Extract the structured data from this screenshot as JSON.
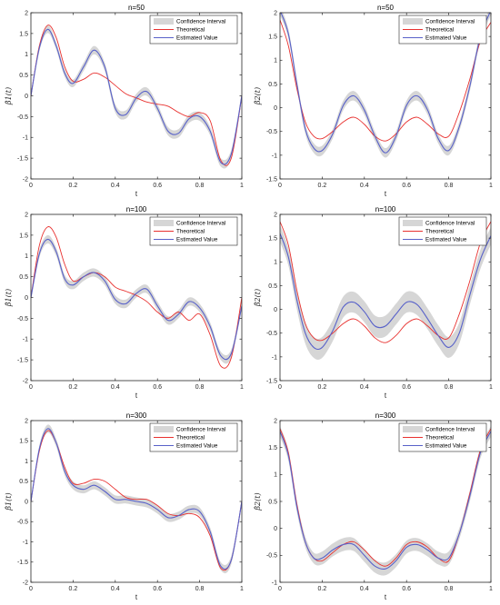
{
  "colors": {
    "band": "#d6d6d6",
    "theoretical": "#e8312f",
    "estimated": "#5861c9"
  },
  "chart_data": [
    {
      "type": "line",
      "title": "n=50",
      "xlabel": "t",
      "ylabel": "β̂1(t)",
      "xlim": [
        0,
        1
      ],
      "ylim": [
        -2,
        2
      ],
      "xticks": [
        "0",
        "0.2",
        "0.4",
        "0.6",
        "0.8",
        "1"
      ],
      "yticks": [
        "-2",
        "-1.5",
        "-1",
        "-0.5",
        "0",
        "0.5",
        "1",
        "1.5",
        "2"
      ],
      "legend": [
        "Confidence Interval",
        "Theoretical",
        "Estimated Value"
      ],
      "legend_position": "top-right",
      "x": [
        0,
        0.04,
        0.08,
        0.12,
        0.16,
        0.2,
        0.25,
        0.3,
        0.35,
        0.4,
        0.45,
        0.5,
        0.55,
        0.6,
        0.65,
        0.7,
        0.75,
        0.8,
        0.85,
        0.9,
        0.95,
        1
      ],
      "series": [
        {
          "name": "Theoretical",
          "values": [
            0,
            1.2,
            1.7,
            1.4,
            0.7,
            0.35,
            0.4,
            0.55,
            0.45,
            0.25,
            0.05,
            -0.05,
            -0.15,
            -0.2,
            -0.25,
            -0.4,
            -0.5,
            -0.4,
            -0.6,
            -1.55,
            -1.5,
            0
          ]
        },
        {
          "name": "Estimated Value",
          "values": [
            0,
            1.15,
            1.6,
            1.2,
            0.55,
            0.3,
            0.7,
            1.1,
            0.7,
            -0.3,
            -0.45,
            -0.05,
            0.1,
            -0.3,
            -0.85,
            -0.9,
            -0.55,
            -0.5,
            -0.85,
            -1.6,
            -1.4,
            0
          ]
        },
        {
          "name": "Confidence Interval",
          "band": [
            0.07,
            0.08,
            0.09,
            0.09,
            0.09,
            0.09,
            0.1,
            0.1,
            0.1,
            0.1,
            0.1,
            0.1,
            0.1,
            0.1,
            0.1,
            0.1,
            0.1,
            0.1,
            0.1,
            0.1,
            0.1,
            0.08
          ]
        }
      ]
    },
    {
      "type": "line",
      "title": "n=50",
      "xlabel": "t",
      "ylabel": "β̂2(t)",
      "xlim": [
        0,
        1
      ],
      "ylim": [
        -1.5,
        2
      ],
      "xticks": [
        "0",
        "0.2",
        "0.4",
        "0.6",
        "0.8",
        "1"
      ],
      "yticks": [
        "-1.5",
        "-1",
        "-0.5",
        "0",
        "0.5",
        "1",
        "1.5",
        "2"
      ],
      "legend": [
        "Confidence Interval",
        "Theoretical",
        "Estimated Value"
      ],
      "legend_position": "top-right",
      "x": [
        0,
        0.04,
        0.08,
        0.12,
        0.16,
        0.2,
        0.25,
        0.3,
        0.35,
        0.4,
        0.45,
        0.5,
        0.55,
        0.6,
        0.65,
        0.7,
        0.75,
        0.8,
        0.85,
        0.9,
        0.95,
        1
      ],
      "series": [
        {
          "name": "Theoretical",
          "values": [
            1.85,
            1.3,
            0.4,
            -0.3,
            -0.6,
            -0.65,
            -0.5,
            -0.3,
            -0.2,
            -0.35,
            -0.6,
            -0.7,
            -0.55,
            -0.3,
            -0.2,
            -0.35,
            -0.55,
            -0.6,
            -0.1,
            0.6,
            1.4,
            1.8
          ]
        },
        {
          "name": "Estimated Value",
          "values": [
            2.05,
            1.55,
            0.5,
            -0.45,
            -0.85,
            -0.9,
            -0.55,
            0.05,
            0.25,
            -0.05,
            -0.6,
            -0.95,
            -0.6,
            0.05,
            0.25,
            -0.05,
            -0.65,
            -0.9,
            -0.4,
            0.45,
            1.5,
            2.05
          ]
        },
        {
          "name": "Confidence Interval",
          "band": [
            0.1,
            0.1,
            0.1,
            0.1,
            0.1,
            0.1,
            0.1,
            0.1,
            0.1,
            0.1,
            0.1,
            0.1,
            0.1,
            0.1,
            0.1,
            0.1,
            0.1,
            0.1,
            0.1,
            0.1,
            0.1,
            0.1
          ]
        }
      ]
    },
    {
      "type": "line",
      "title": "n=100",
      "xlabel": "t",
      "ylabel": "β̂1(t)",
      "xlim": [
        0,
        1
      ],
      "ylim": [
        -2,
        2
      ],
      "xticks": [
        "0",
        "0.2",
        "0.4",
        "0.6",
        "0.8",
        "1"
      ],
      "yticks": [
        "-2",
        "-1.5",
        "-1",
        "-0.5",
        "0",
        "0.5",
        "1",
        "1.5",
        "2"
      ],
      "legend": [
        "Confidence Interval",
        "Theoretical",
        "Estimated Value"
      ],
      "legend_position": "top-right",
      "x": [
        0,
        0.04,
        0.08,
        0.12,
        0.16,
        0.2,
        0.25,
        0.3,
        0.35,
        0.4,
        0.45,
        0.5,
        0.55,
        0.6,
        0.65,
        0.7,
        0.75,
        0.8,
        0.85,
        0.9,
        0.95,
        1
      ],
      "series": [
        {
          "name": "Theoretical",
          "values": [
            0,
            1.25,
            1.7,
            1.45,
            0.8,
            0.4,
            0.5,
            0.6,
            0.5,
            0.25,
            0.15,
            0.05,
            -0.1,
            -0.35,
            -0.5,
            -0.35,
            -0.55,
            -0.4,
            -0.9,
            -1.65,
            -1.45,
            0
          ]
        },
        {
          "name": "Estimated Value",
          "values": [
            0,
            1.05,
            1.4,
            1.1,
            0.45,
            0.3,
            0.5,
            0.6,
            0.4,
            -0.05,
            -0.15,
            0.1,
            0.2,
            -0.2,
            -0.55,
            -0.4,
            -0.1,
            -0.25,
            -0.7,
            -1.4,
            -1.35,
            -0.2
          ]
        },
        {
          "name": "Confidence Interval",
          "band": [
            0.08,
            0.09,
            0.1,
            0.1,
            0.1,
            0.1,
            0.1,
            0.1,
            0.1,
            0.1,
            0.1,
            0.1,
            0.1,
            0.1,
            0.1,
            0.1,
            0.1,
            0.1,
            0.1,
            0.1,
            0.1,
            0.08
          ]
        }
      ]
    },
    {
      "type": "line",
      "title": "n=100",
      "xlabel": "t",
      "ylabel": "β̂2(t)",
      "xlim": [
        0,
        1
      ],
      "ylim": [
        -1.5,
        2
      ],
      "xticks": [
        "0",
        "0.2",
        "0.4",
        "0.6",
        "0.8",
        "1"
      ],
      "yticks": [
        "-1.5",
        "-1",
        "-0.5",
        "0",
        "0.5",
        "1",
        "1.5",
        "2"
      ],
      "legend": [
        "Confidence Interval",
        "Theoretical",
        "Estimated Value"
      ],
      "legend_position": "top-right",
      "x": [
        0,
        0.04,
        0.08,
        0.12,
        0.16,
        0.2,
        0.25,
        0.3,
        0.35,
        0.4,
        0.45,
        0.5,
        0.55,
        0.6,
        0.65,
        0.7,
        0.75,
        0.8,
        0.85,
        0.9,
        0.95,
        1
      ],
      "series": [
        {
          "name": "Theoretical",
          "values": [
            1.85,
            1.35,
            0.4,
            -0.3,
            -0.6,
            -0.65,
            -0.5,
            -0.3,
            -0.2,
            -0.35,
            -0.6,
            -0.7,
            -0.55,
            -0.3,
            -0.2,
            -0.35,
            -0.55,
            -0.6,
            -0.1,
            0.6,
            1.4,
            1.85
          ]
        },
        {
          "name": "Estimated Value",
          "values": [
            1.6,
            1.1,
            0.2,
            -0.5,
            -0.8,
            -0.8,
            -0.45,
            0.05,
            0.15,
            -0.05,
            -0.35,
            -0.35,
            -0.1,
            0.15,
            0.1,
            -0.2,
            -0.55,
            -0.8,
            -0.5,
            0.3,
            1.05,
            1.55
          ]
        },
        {
          "name": "Confidence Interval",
          "band": [
            0.18,
            0.18,
            0.2,
            0.22,
            0.22,
            0.22,
            0.22,
            0.22,
            0.22,
            0.22,
            0.22,
            0.22,
            0.22,
            0.22,
            0.22,
            0.22,
            0.22,
            0.22,
            0.22,
            0.2,
            0.2,
            0.18
          ]
        }
      ]
    },
    {
      "type": "line",
      "title": "n=300",
      "xlabel": "t",
      "ylabel": "β̂1(t)",
      "xlim": [
        0,
        1
      ],
      "ylim": [
        -2,
        2
      ],
      "xticks": [
        "0",
        "0.2",
        "0.4",
        "0.6",
        "0.8",
        "1"
      ],
      "yticks": [
        "-2",
        "-1.5",
        "-1",
        "-0.5",
        "0",
        "0.5",
        "1",
        "1.5",
        "2"
      ],
      "legend": [
        "Confidence Interval",
        "Theoretical",
        "Estimated Value"
      ],
      "legend_position": "top-right",
      "x": [
        0,
        0.04,
        0.08,
        0.12,
        0.16,
        0.2,
        0.25,
        0.3,
        0.35,
        0.4,
        0.45,
        0.5,
        0.55,
        0.6,
        0.65,
        0.7,
        0.75,
        0.8,
        0.85,
        0.9,
        0.95,
        1
      ],
      "series": [
        {
          "name": "Theoretical",
          "values": [
            0,
            1.25,
            1.75,
            1.45,
            0.85,
            0.45,
            0.45,
            0.55,
            0.5,
            0.3,
            0.1,
            0.05,
            0.05,
            -0.1,
            -0.3,
            -0.35,
            -0.3,
            -0.4,
            -0.85,
            -1.65,
            -1.45,
            0
          ]
        },
        {
          "name": "Estimated Value",
          "values": [
            0,
            1.3,
            1.8,
            1.45,
            0.75,
            0.4,
            0.3,
            0.4,
            0.25,
            0.05,
            0.05,
            0,
            -0.05,
            -0.2,
            -0.4,
            -0.35,
            -0.2,
            -0.25,
            -0.75,
            -1.6,
            -1.45,
            0
          ]
        },
        {
          "name": "Confidence Interval",
          "band": [
            0.05,
            0.08,
            0.1,
            0.1,
            0.1,
            0.1,
            0.1,
            0.1,
            0.1,
            0.1,
            0.1,
            0.1,
            0.1,
            0.1,
            0.1,
            0.1,
            0.1,
            0.1,
            0.1,
            0.1,
            0.1,
            0.05
          ]
        }
      ]
    },
    {
      "type": "line",
      "title": "n=300",
      "xlabel": "t",
      "ylabel": "β̂2(t)",
      "xlim": [
        0,
        1
      ],
      "ylim": [
        -1,
        2
      ],
      "xticks": [
        "0",
        "0.2",
        "0.4",
        "0.6",
        "0.8",
        "1"
      ],
      "yticks": [
        "-1",
        "-0.5",
        "0",
        "0.5",
        "1",
        "1.5",
        "2"
      ],
      "legend": [
        "Confidence Interval",
        "Theoretical",
        "Estimated Value"
      ],
      "legend_position": "top-right",
      "x": [
        0,
        0.04,
        0.08,
        0.12,
        0.16,
        0.2,
        0.25,
        0.3,
        0.35,
        0.4,
        0.45,
        0.5,
        0.55,
        0.6,
        0.65,
        0.7,
        0.75,
        0.8,
        0.85,
        0.9,
        0.95,
        1
      ],
      "series": [
        {
          "name": "Theoretical",
          "values": [
            1.85,
            1.4,
            0.45,
            -0.25,
            -0.55,
            -0.6,
            -0.45,
            -0.3,
            -0.25,
            -0.4,
            -0.6,
            -0.7,
            -0.55,
            -0.3,
            -0.25,
            -0.35,
            -0.55,
            -0.6,
            -0.1,
            0.65,
            1.45,
            1.85
          ]
        },
        {
          "name": "Estimated Value",
          "values": [
            1.8,
            1.35,
            0.4,
            -0.25,
            -0.55,
            -0.55,
            -0.4,
            -0.3,
            -0.3,
            -0.5,
            -0.7,
            -0.75,
            -0.6,
            -0.35,
            -0.3,
            -0.4,
            -0.55,
            -0.55,
            -0.1,
            0.6,
            1.4,
            1.8
          ]
        },
        {
          "name": "Confidence Interval",
          "band": [
            0.1,
            0.1,
            0.1,
            0.1,
            0.1,
            0.12,
            0.12,
            0.12,
            0.12,
            0.12,
            0.12,
            0.12,
            0.12,
            0.12,
            0.12,
            0.12,
            0.12,
            0.12,
            0.1,
            0.1,
            0.1,
            0.1
          ]
        }
      ]
    }
  ]
}
